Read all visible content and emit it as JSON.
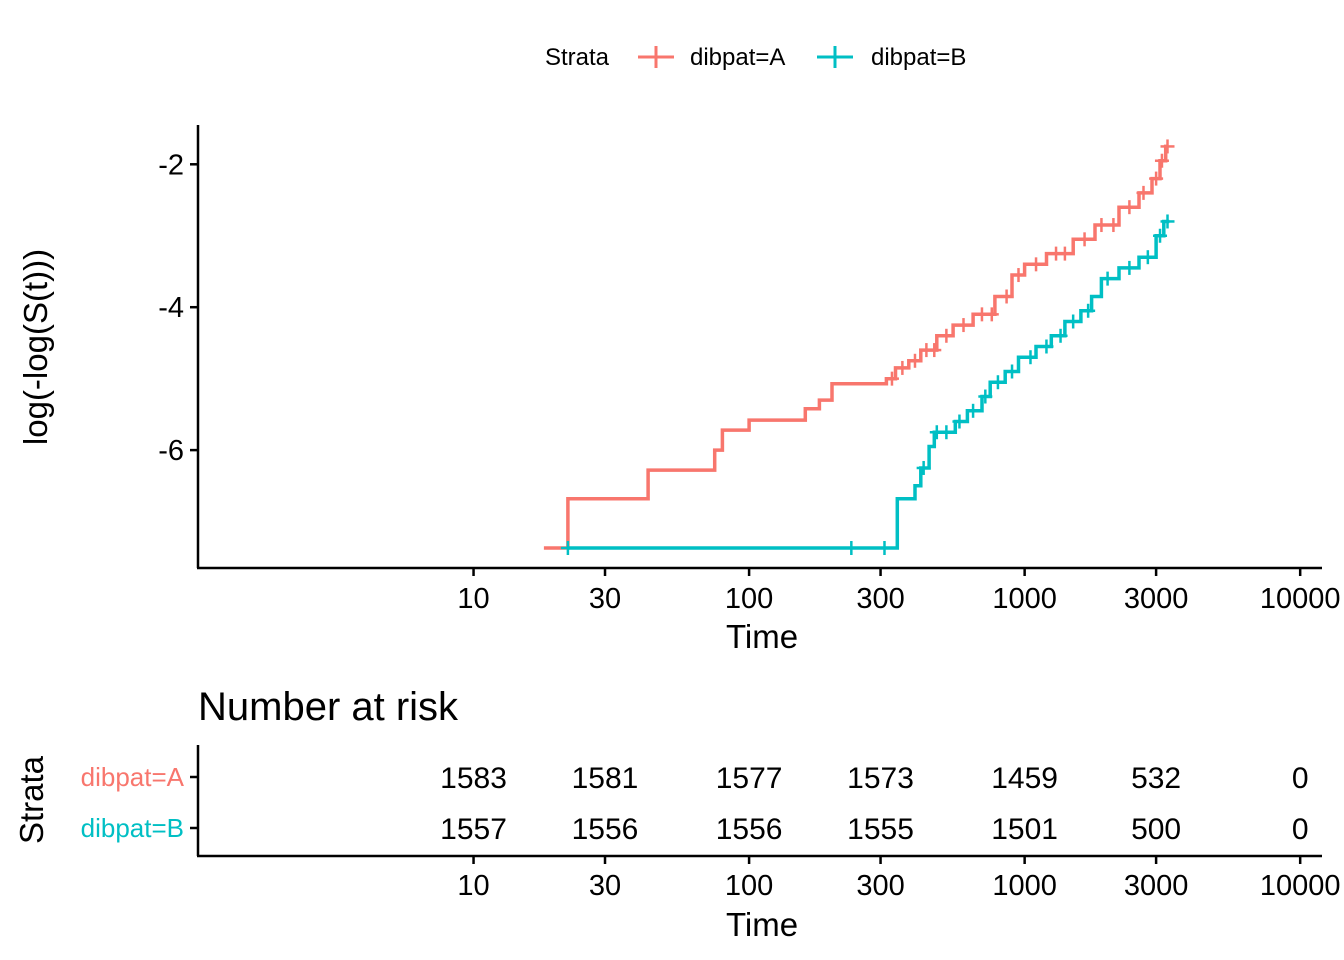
{
  "chart_data": [
    {
      "type": "line",
      "title": "",
      "xlabel": "Time",
      "ylabel": "log(-log(S(t)))",
      "xscale": "log10",
      "xticks": [
        10,
        30,
        100,
        300,
        1000,
        3000,
        10000
      ],
      "xtick_labels": [
        "10",
        "30",
        "100",
        "300",
        "1000",
        "3000",
        "10000"
      ],
      "yticks": [
        -2,
        -4,
        -6
      ],
      "ytick_labels": [
        "-2",
        "-4",
        "-6"
      ],
      "xlim": [
        1,
        12000
      ],
      "ylim": [
        -7.65,
        -1.45
      ],
      "grid": false,
      "legend": {
        "title": "Strata",
        "position": "top",
        "entries": [
          "dibpat=A",
          "dibpat=B"
        ]
      },
      "series": [
        {
          "name": "dibpat=A",
          "color": "#F8766D",
          "steps": [
            [
              18,
              -7.37
            ],
            [
              22,
              -6.68
            ],
            [
              43,
              -6.28
            ],
            [
              75,
              -6.0
            ],
            [
              80,
              -5.72
            ],
            [
              100,
              -5.58
            ],
            [
              160,
              -5.42
            ],
            [
              180,
              -5.3
            ],
            [
              200,
              -5.07
            ],
            [
              315,
              -5.0
            ],
            [
              340,
              -4.85
            ],
            [
              380,
              -4.75
            ],
            [
              420,
              -4.6
            ],
            [
              480,
              -4.4
            ],
            [
              550,
              -4.25
            ],
            [
              650,
              -4.1
            ],
            [
              780,
              -3.85
            ],
            [
              900,
              -3.55
            ],
            [
              1000,
              -3.4
            ],
            [
              1200,
              -3.25
            ],
            [
              1500,
              -3.05
            ],
            [
              1800,
              -2.85
            ],
            [
              2200,
              -2.6
            ],
            [
              2600,
              -2.4
            ],
            [
              2900,
              -2.2
            ],
            [
              3100,
              -1.95
            ],
            [
              3250,
              -1.75
            ],
            [
              3300,
              -1.75
            ]
          ],
          "censor_times": [
            330,
            360,
            400,
            440,
            470,
            520,
            600,
            700,
            760,
            860,
            950,
            1100,
            1300,
            1400,
            1650,
            1900,
            2100,
            2400,
            2700,
            3000,
            3150,
            3300
          ]
        },
        {
          "name": "dibpat=B",
          "color": "#00BFC4",
          "steps": [
            [
              22,
              -7.37
            ],
            [
              345,
              -6.68
            ],
            [
              400,
              -6.5
            ],
            [
              420,
              -6.25
            ],
            [
              450,
              -5.95
            ],
            [
              470,
              -5.75
            ],
            [
              560,
              -5.6
            ],
            [
              620,
              -5.45
            ],
            [
              700,
              -5.25
            ],
            [
              750,
              -5.05
            ],
            [
              850,
              -4.9
            ],
            [
              950,
              -4.7
            ],
            [
              1100,
              -4.55
            ],
            [
              1250,
              -4.4
            ],
            [
              1400,
              -4.2
            ],
            [
              1600,
              -4.05
            ],
            [
              1750,
              -3.85
            ],
            [
              1900,
              -3.6
            ],
            [
              2200,
              -3.45
            ],
            [
              2600,
              -3.3
            ],
            [
              3000,
              -3.0
            ],
            [
              3200,
              -2.8
            ],
            [
              3350,
              -2.8
            ]
          ],
          "censor_times": [
            22,
            235,
            310,
            430,
            480,
            520,
            580,
            650,
            720,
            800,
            900,
            1050,
            1200,
            1350,
            1500,
            1700,
            2000,
            2400,
            2800,
            3100,
            3300
          ]
        }
      ]
    },
    {
      "type": "table",
      "title": "Number at risk",
      "xlabel": "Time",
      "ylabel": "Strata",
      "xscale": "log10",
      "times": [
        10,
        30,
        100,
        300,
        1000,
        3000,
        10000
      ],
      "xtick_labels": [
        "10",
        "30",
        "100",
        "300",
        "1000",
        "3000",
        "10000"
      ],
      "rows": [
        {
          "name": "dibpat=A",
          "color": "#F8766D",
          "values": [
            1583,
            1581,
            1577,
            1573,
            1459,
            532,
            0
          ]
        },
        {
          "name": "dibpat=B",
          "color": "#00BFC4",
          "values": [
            1557,
            1556,
            1556,
            1555,
            1501,
            500,
            0
          ]
        }
      ]
    }
  ]
}
